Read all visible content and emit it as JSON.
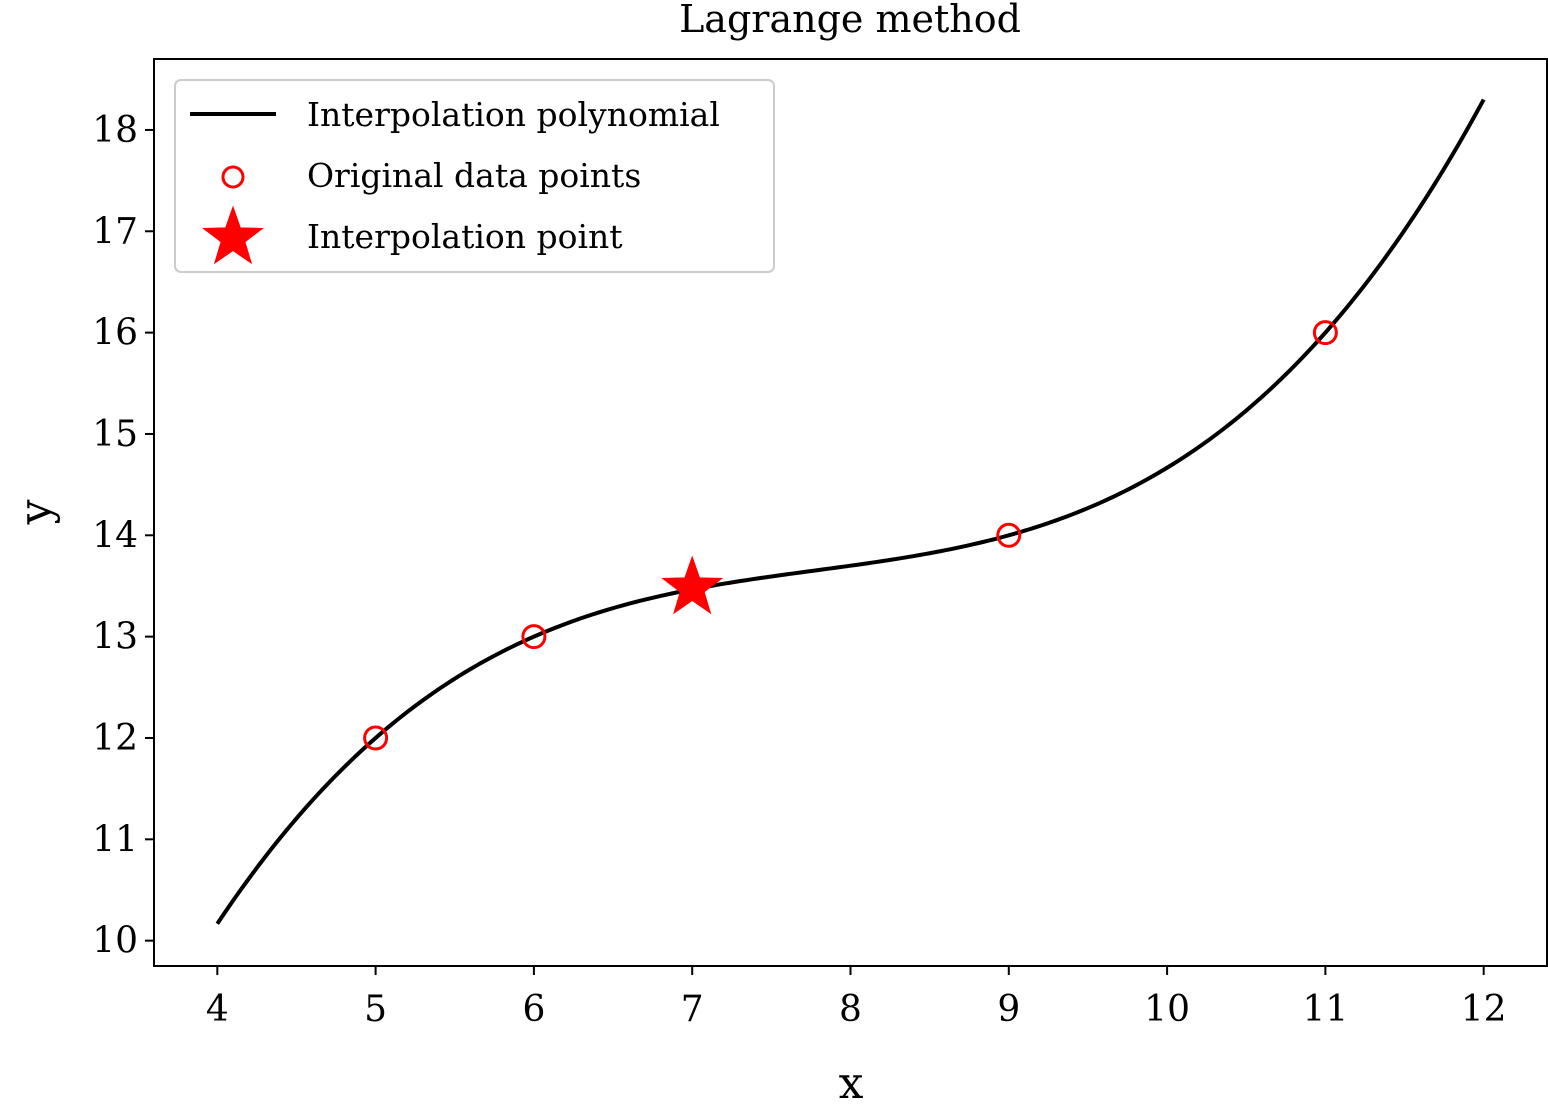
{
  "chart_data": {
    "type": "line",
    "title": "Lagrange method",
    "xlabel": "x",
    "ylabel": "y",
    "xlim": [
      3.6,
      12.4
    ],
    "ylim": [
      9.75,
      18.7
    ],
    "xticks": [
      4,
      5,
      6,
      7,
      8,
      9,
      10,
      11,
      12
    ],
    "yticks": [
      10,
      11,
      12,
      13,
      14,
      15,
      16,
      17,
      18
    ],
    "grid": false,
    "legend_position": "top-left",
    "curve_x_range": [
      4,
      12
    ],
    "series": [
      {
        "name": "Interpolation polynomial",
        "kind": "line",
        "color": "#000000",
        "x": [
          4,
          4.5,
          5,
          5.5,
          6,
          6.5,
          7,
          7.5,
          8,
          8.5,
          9,
          9.5,
          10,
          10.5,
          11,
          11.5,
          12
        ],
        "y": [
          10.15,
          11.19,
          12.0,
          12.58,
          13.0,
          13.3,
          13.48,
          13.61,
          13.7,
          13.81,
          14.0,
          14.27,
          14.67,
          15.23,
          16.0,
          17.02,
          18.33
        ]
      },
      {
        "name": "Original data points",
        "kind": "scatter",
        "marker": "open-circle",
        "color": "#ff0000",
        "x": [
          5,
          6,
          9,
          11
        ],
        "y": [
          12,
          13,
          14,
          16
        ]
      },
      {
        "name": "Interpolation point",
        "kind": "scatter",
        "marker": "star",
        "color": "#ff0000",
        "x": [
          7
        ],
        "y": [
          13.48
        ]
      }
    ]
  }
}
